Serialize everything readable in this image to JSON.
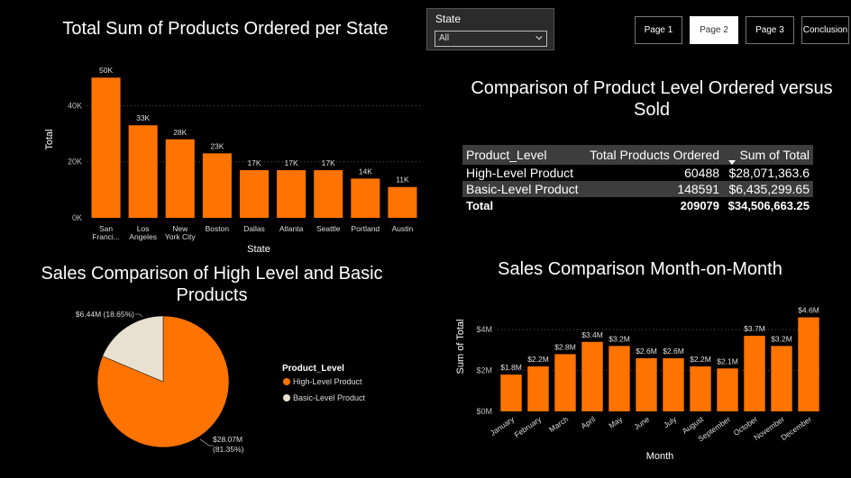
{
  "titles": {
    "state_chart": "Total Sum of Products Ordered per State",
    "comparison_table": "Comparison of Product Level Ordered versus Sold",
    "pie_chart": "Sales Comparison of High Level and Basic Products",
    "month_chart": "Sales Comparison Month-on-Month"
  },
  "slicer": {
    "label": "State",
    "value": "All"
  },
  "nav": {
    "buttons": [
      "Page 1",
      "Page 2",
      "Page 3",
      "Conclusion"
    ],
    "active": "Page 2"
  },
  "colors": {
    "accent": "#FF7300",
    "basic": "#E8E0D0",
    "table_header": "#3d3d3d"
  },
  "table": {
    "columns": [
      "Product_Level",
      "Total Products Ordered",
      "Sum of Total"
    ],
    "rows": [
      [
        "High-Level Product",
        "60488",
        "$28,071,363.6"
      ],
      [
        "Basic-Level Product",
        "148591",
        "$6,435,299.65"
      ]
    ],
    "total": [
      "Total",
      "209079",
      "$34,506,663.25"
    ]
  },
  "chart_data": [
    {
      "type": "bar",
      "categories": [
        "San Franci...",
        "Los Angeles",
        "New York City",
        "Boston",
        "Dallas",
        "Atlanta",
        "Seattle",
        "Portland",
        "Austin"
      ],
      "values": [
        50000,
        33000,
        28000,
        23000,
        17000,
        17000,
        17000,
        14000,
        11000
      ],
      "data_labels": [
        "50K",
        "33K",
        "28K",
        "23K",
        "17K",
        "17K",
        "17K",
        "14K",
        "11K"
      ],
      "xlabel": "State",
      "ylabel": "Total",
      "yticks": [
        0,
        20000,
        40000
      ],
      "ytick_labels": [
        "0K",
        "20K",
        "40K"
      ],
      "ylim": [
        0,
        52000
      ],
      "grid": true
    },
    {
      "type": "pie",
      "categories": [
        "High-Level Product",
        "Basic-Level Product"
      ],
      "values": [
        81.35,
        18.65
      ],
      "data_labels": [
        "$28.07M (81.35%)",
        "$6.44M (18.65%)"
      ],
      "legend_title": "Product_Level",
      "legend_placement": "right"
    },
    {
      "type": "bar",
      "categories": [
        "January",
        "February",
        "March",
        "April",
        "May",
        "June",
        "July",
        "August",
        "September",
        "October",
        "November",
        "December"
      ],
      "values": [
        1.8,
        2.2,
        2.8,
        3.4,
        3.2,
        2.6,
        2.6,
        2.2,
        2.1,
        3.7,
        3.2,
        4.6
      ],
      "data_labels": [
        "$1.8M",
        "$2.2M",
        "$2.8M",
        "$3.4M",
        "$3.2M",
        "$2.6M",
        "$2.6M",
        "$2.2M",
        "$2.1M",
        "$3.7M",
        "$3.2M",
        "$4.6M"
      ],
      "xlabel": "Month",
      "ylabel": "Sum of Total",
      "yticks": [
        0,
        2,
        4
      ],
      "ytick_labels": [
        "$0M",
        "$2M",
        "$4M"
      ],
      "ylim": [
        0,
        4.8
      ],
      "grid": true
    }
  ]
}
